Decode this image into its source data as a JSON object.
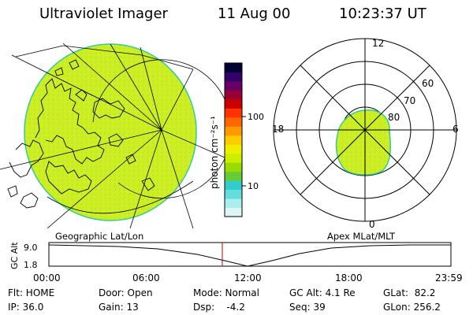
{
  "header": {
    "title": "Ultraviolet Imager",
    "date": "11 Aug 00",
    "time": "10:23:37 UT"
  },
  "colorbar": {
    "unit_label": "photon cm⁻²s⁻¹",
    "tick_high": "100",
    "tick_low": "10",
    "colors": [
      "#000033",
      "#330066",
      "#660066",
      "#990033",
      "#cc0000",
      "#ff3300",
      "#ff6600",
      "#ff9900",
      "#ffcc00",
      "#eeee00",
      "#ccee00",
      "#99dd00",
      "#66cc33",
      "#33cccc",
      "#66dddd",
      "#aaeeee",
      "#ddf5f5"
    ]
  },
  "left_panel": {
    "label": "Geographic Lat/Lon",
    "fill_color": "#ccee22"
  },
  "right_panel": {
    "label": "Apex MLat/MLT",
    "fill_color": "#ccee22",
    "mlt_labels": {
      "top": "12",
      "bottom": "0",
      "left": "18",
      "right": "6"
    },
    "lat_labels": [
      "60",
      "70",
      "80"
    ]
  },
  "altitude_strip": {
    "axis_label": "GC Alt",
    "y_ticks": [
      "9.0",
      "1.8"
    ],
    "x_ticks": [
      "00:00",
      "06:00",
      "12:00",
      "18:00",
      "23:59"
    ],
    "marker_color": "#cc0000"
  },
  "status": {
    "flt": "Flt: HOME",
    "ip": "IP: 36.0",
    "door": "Door: Open",
    "gain": "Gain: 13",
    "mode": "Mode: Normal",
    "dsp": "Dsp:    -4.2",
    "gcalt": "GC Alt: 4.1 Re",
    "seq": "Seq: 39",
    "glat": "GLat:  82.2",
    "glon": "GLon: 256.2"
  }
}
